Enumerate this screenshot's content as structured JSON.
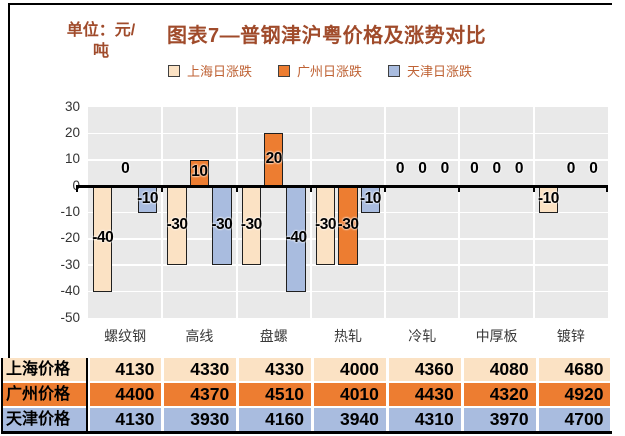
{
  "unit_label": "单位：元/吨",
  "chart_data": {
    "type": "bar",
    "title": "图表7—普钢津沪粤价格及涨势对比",
    "unit": "单位：元/吨",
    "categories": [
      "螺纹钢",
      "高线",
      "盘螺",
      "热轧",
      "冷轧",
      "中厚板",
      "镀锌"
    ],
    "series": [
      {
        "name": "上海日涨跌",
        "color": "#FBE2C4",
        "values": [
          -40,
          -30,
          -30,
          -30,
          0,
          0,
          -10
        ]
      },
      {
        "name": "广州日涨跌",
        "color": "#ED7D31",
        "values": [
          0,
          10,
          20,
          -30,
          0,
          0,
          0
        ]
      },
      {
        "name": "天津日涨跌",
        "color": "#A9BCDF",
        "values": [
          -10,
          -30,
          -40,
          -10,
          0,
          0,
          0
        ]
      }
    ],
    "ylim": [
      -50,
      30
    ],
    "yticks": [
      30,
      20,
      10,
      0,
      -10,
      -20,
      -30,
      -40,
      -50
    ],
    "grid": true,
    "legend_position": "top",
    "data_labels": true
  },
  "table": {
    "rows": [
      {
        "label": "上海价格",
        "color": "#FBE2C4",
        "values": [
          4130,
          4330,
          4330,
          4000,
          4360,
          4080,
          4680
        ]
      },
      {
        "label": "广州价格",
        "color": "#ED7D31",
        "values": [
          4400,
          4370,
          4510,
          4010,
          4430,
          4320,
          4920
        ]
      },
      {
        "label": "天津价格",
        "color": "#A9BCDF",
        "values": [
          4130,
          3930,
          4160,
          3940,
          4310,
          3970,
          4700
        ]
      }
    ]
  },
  "colors": {
    "title_text": "#A04B2B",
    "unit_text": "#A04B2B",
    "legend_text": "#BF6234",
    "axis_text": "#333333",
    "data_label": "#000000",
    "bar_border": "#1F1F1F",
    "plot_background": "#E9E9E9",
    "gridline": "#FFFFFF",
    "zero_line": "#000000",
    "frame_border": "#000000"
  }
}
